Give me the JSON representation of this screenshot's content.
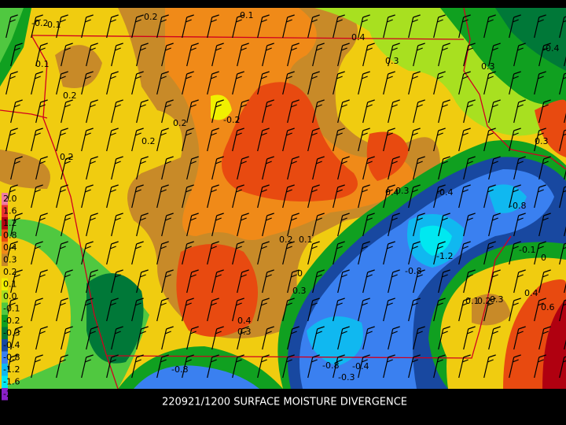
{
  "caption": "220921/1200 SURFACE MOISTURE DIVERGENCE",
  "legend": {
    "levels": [
      {
        "label": "2.0",
        "color": "#f07aa0"
      },
      {
        "label": "1.6",
        "color": "#e83030"
      },
      {
        "label": "1.2",
        "color": "#b00010"
      },
      {
        "label": "0.8",
        "color": "#e84a10"
      },
      {
        "label": "0.4",
        "color": "#f08a18"
      },
      {
        "label": "0.3",
        "color": "#c88a28"
      },
      {
        "label": "0.2",
        "color": "#f0cc10"
      },
      {
        "label": "0.1",
        "color": "#f0f000"
      },
      {
        "label": "0.0",
        "color": "#a8e020"
      },
      {
        "label": "-0.1",
        "color": "#50c840"
      },
      {
        "label": "-0.2",
        "color": "#10a020"
      },
      {
        "label": "-0.3",
        "color": "#007838"
      },
      {
        "label": "-0.4",
        "color": "#1848a0"
      },
      {
        "label": "-0.8",
        "color": "#3a80f0"
      },
      {
        "label": "-1.2",
        "color": "#10b8f0"
      },
      {
        "label": "-1.6",
        "color": "#00e8f0"
      },
      {
        "label": "-2.0",
        "color": "#8a20c8"
      }
    ]
  },
  "contour_labels": [
    "-0.2",
    "0.1",
    "0.2",
    "0.1",
    "0.4",
    "0.3",
    "0.1",
    "0.2",
    "0.3",
    "-0.4",
    "0.2",
    "-0.2",
    "0.2",
    "0.2",
    "0.3",
    "0.4",
    "0.3",
    "-0.4",
    "-0.8",
    "-1.2",
    "-0.8",
    "0.2",
    "0.1",
    "0",
    "0.4",
    "0.3",
    "-0.8",
    "-0.8",
    "-0.4",
    "-0.3",
    "0.1",
    "0.2",
    "0.3",
    "0.4",
    "0.6",
    "-0.1",
    "0",
    "0.3"
  ]
}
